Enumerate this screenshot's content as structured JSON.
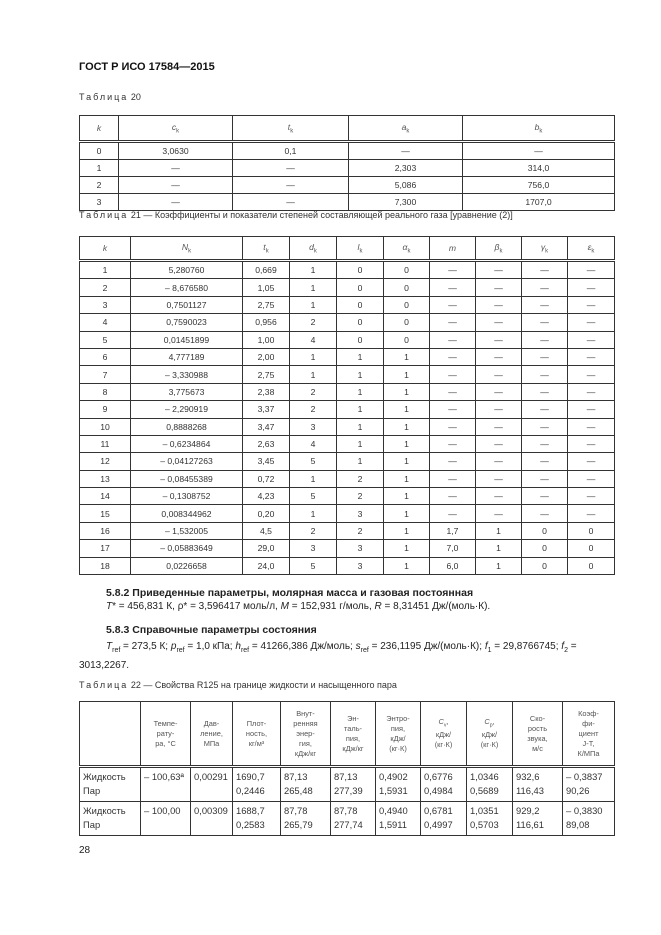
{
  "header": {
    "doc_title": "ГОСТ Р ИСО 17584—2015"
  },
  "table20": {
    "caption_word": "Таблица",
    "caption_num": "20",
    "headers": [
      {
        "v": "k",
        "sub": ""
      },
      {
        "v": "c",
        "sub": "k"
      },
      {
        "v": "t",
        "sub": "k"
      },
      {
        "v": "a",
        "sub": "k"
      },
      {
        "v": "b",
        "sub": "k"
      }
    ],
    "rows": [
      [
        "0",
        "3,0630",
        "0,1",
        "—",
        "—"
      ],
      [
        "1",
        "—",
        "—",
        "2,303",
        "314,0"
      ],
      [
        "2",
        "—",
        "—",
        "5,086",
        "756,0"
      ],
      [
        "3",
        "—",
        "—",
        "7,300",
        "1707,0"
      ]
    ]
  },
  "table21": {
    "caption_word": "Таблица",
    "caption_rest": "21 — Коэффициенты и показатели степеней составляющей реального газа [уравнение (2)]",
    "headers": [
      {
        "v": "k",
        "sub": ""
      },
      {
        "v": "N",
        "sub": "k"
      },
      {
        "v": "t",
        "sub": "k"
      },
      {
        "v": "d",
        "sub": "k"
      },
      {
        "v": "l",
        "sub": "k"
      },
      {
        "v": "α",
        "sub": "k"
      },
      {
        "v": "m",
        "sub": ""
      },
      {
        "v": "β",
        "sub": "k"
      },
      {
        "v": "γ",
        "sub": "k"
      },
      {
        "v": "ε",
        "sub": "k"
      }
    ],
    "rows": [
      [
        "1",
        "5,280760",
        "0,669",
        "1",
        "0",
        "0",
        "—",
        "—",
        "—",
        "—"
      ],
      [
        "2",
        "– 8,676580",
        "1,05",
        "1",
        "0",
        "0",
        "—",
        "—",
        "—",
        "—"
      ],
      [
        "3",
        "0,7501127",
        "2,75",
        "1",
        "0",
        "0",
        "—",
        "—",
        "—",
        "—"
      ],
      [
        "4",
        "0,7590023",
        "0,956",
        "2",
        "0",
        "0",
        "—",
        "—",
        "—",
        "—"
      ],
      [
        "5",
        "0,01451899",
        "1,00",
        "4",
        "0",
        "0",
        "—",
        "—",
        "—",
        "—"
      ],
      [
        "6",
        "4,777189",
        "2,00",
        "1",
        "1",
        "1",
        "—",
        "—",
        "—",
        "—"
      ],
      [
        "7",
        "– 3,330988",
        "2,75",
        "1",
        "1",
        "1",
        "—",
        "—",
        "—",
        "—"
      ],
      [
        "8",
        "3,775673",
        "2,38",
        "2",
        "1",
        "1",
        "—",
        "—",
        "—",
        "—"
      ],
      [
        "9",
        "– 2,290919",
        "3,37",
        "2",
        "1",
        "1",
        "—",
        "—",
        "—",
        "—"
      ],
      [
        "10",
        "0,8888268",
        "3,47",
        "3",
        "1",
        "1",
        "—",
        "—",
        "—",
        "—"
      ],
      [
        "11",
        "– 0,6234864",
        "2,63",
        "4",
        "1",
        "1",
        "—",
        "—",
        "—",
        "—"
      ],
      [
        "12",
        "– 0,04127263",
        "3,45",
        "5",
        "1",
        "1",
        "—",
        "—",
        "—",
        "—"
      ],
      [
        "13",
        "– 0,08455389",
        "0,72",
        "1",
        "2",
        "1",
        "—",
        "—",
        "—",
        "—"
      ],
      [
        "14",
        "– 0,1308752",
        "4,23",
        "5",
        "2",
        "1",
        "—",
        "—",
        "—",
        "—"
      ],
      [
        "15",
        "0,008344962",
        "0,20",
        "1",
        "3",
        "1",
        "—",
        "—",
        "—",
        "—"
      ],
      [
        "16",
        "– 1,532005",
        "4,5",
        "2",
        "2",
        "1",
        "1,7",
        "1",
        "0",
        "0"
      ],
      [
        "17",
        "– 0,05883649",
        "29,0",
        "3",
        "3",
        "1",
        "7,0",
        "1",
        "0",
        "0"
      ],
      [
        "18",
        "0,0226658",
        "24,0",
        "5",
        "3",
        "1",
        "6,0",
        "1",
        "0",
        "0"
      ]
    ]
  },
  "section582": {
    "heading": "5.8.2 Приведенные параметры, молярная масса и газовая постоянная",
    "segments": [
      {
        "v": "T",
        "t": "* = 456,831 К, ρ* = 3,596417 моль/л, "
      },
      {
        "v": "M",
        "t": " = 152,931 г/моль, "
      },
      {
        "v": "R",
        "t": " = 8,31451 Дж/(моль·К)."
      }
    ]
  },
  "section583": {
    "heading": "5.8.3 Справочные параметры состояния",
    "segments": [
      {
        "v": "T",
        "s": "ref",
        "t": " = 273,5 К; "
      },
      {
        "v": "p",
        "s": "ref",
        "t": " = 1,0 кПа; "
      },
      {
        "v": "h",
        "s": "ref",
        "t": " = 41266,386 Дж/моль; "
      },
      {
        "v": "s",
        "s": "ref",
        "t": " = 236,1195 Дж/(моль·К); "
      },
      {
        "v": "f",
        "s": "1",
        "t": " = 29,8766745; "
      },
      {
        "v": "f",
        "s": "2",
        "t": " = 3013,2267."
      }
    ]
  },
  "table22": {
    "caption_word": "Таблица",
    "caption_rest": "22 — Свойства R125 на границе жидкости и насыщенного пара",
    "headers": [
      {
        "t": ""
      },
      {
        "t": "Темпе-\nрату-\nра, °С"
      },
      {
        "t": "Дав-\nление,\nМПа"
      },
      {
        "t": "Плот-\nность,\nкг/м³"
      },
      {
        "t": "Внут-\nренняя\nэнер-\nгия,\nкДж/кг"
      },
      {
        "t": "Эн-\nталь-\nпия,\nкДж/кг"
      },
      {
        "t": "Энтро-\nпия,\nкДж/\n(кг·К)"
      },
      {
        "v": "C",
        "s": "v",
        "t": ",\nкДж/\n(кг·К)"
      },
      {
        "v": "C",
        "s": "p",
        "t": ",\nкДж/\n(кг·К)"
      },
      {
        "t": "Ско-\nрость\nзвука,\nм/с"
      },
      {
        "t": "Коэф-\nфи-\nциент\nJ-T,\nК/МПа"
      }
    ],
    "rows": [
      [
        "Жидкость\nПар",
        "– 100,63ª",
        "0,00291",
        "1690,7\n0,2446",
        "87,13\n265,48",
        "87,13\n277,39",
        "0,4902\n1,5931",
        "0,6776\n0,4984",
        "1,0346\n0,5689",
        "932,6\n116,43",
        "– 0,3837\n90,26"
      ],
      [
        "Жидкость\nПар",
        "– 100,00",
        "0,00309",
        "1688,7\n0,2583",
        "87,78\n265,79",
        "87,78\n277,74",
        "0,4940\n1,5911",
        "0,6781\n0,4997",
        "1,0351\n0,5703",
        "929,2\n116,61",
        "– 0,3830\n89,08"
      ]
    ]
  },
  "footer": {
    "page_number": "28"
  }
}
